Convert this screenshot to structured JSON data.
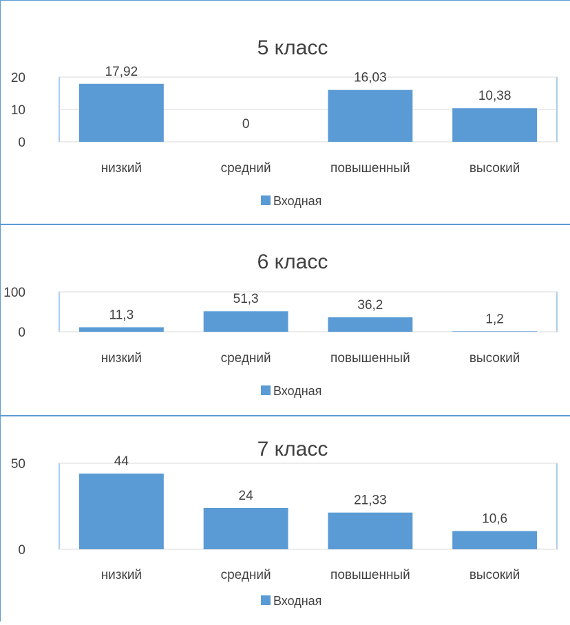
{
  "chart_data": [
    {
      "type": "bar",
      "title": "5 класс",
      "categories": [
        "низкий",
        "средний",
        "повышенный",
        "высокий"
      ],
      "series": [
        {
          "name": "Входная",
          "values": [
            17.92,
            0,
            16.03,
            10.38
          ]
        }
      ],
      "data_labels": [
        "17,92",
        "0",
        "16,03",
        "10,38"
      ],
      "ylim": [
        0,
        20
      ],
      "yticks": [
        "0",
        "10",
        "20"
      ],
      "ytick_values": [
        0,
        10,
        20
      ],
      "grid": true,
      "legend": "bottom",
      "color": "#5b9bd5"
    },
    {
      "type": "bar",
      "title": "6 класс",
      "categories": [
        "низкий",
        "средний",
        "повышенный",
        "высокий"
      ],
      "series": [
        {
          "name": "Входная",
          "values": [
            11.3,
            51.3,
            36.2,
            1.2
          ]
        }
      ],
      "data_labels": [
        "11,3",
        "51,3",
        "36,2",
        "1,2"
      ],
      "ylim": [
        0,
        100
      ],
      "yticks": [
        "0",
        "100"
      ],
      "ytick_values": [
        0,
        100
      ],
      "grid": true,
      "legend": "bottom",
      "color": "#5b9bd5"
    },
    {
      "type": "bar",
      "title": "7 класс",
      "categories": [
        "низкий",
        "средний",
        "повышенный",
        "высокий"
      ],
      "series": [
        {
          "name": "Входная",
          "values": [
            44,
            24,
            21.33,
            10.6
          ]
        }
      ],
      "data_labels": [
        "44",
        "24",
        "21,33",
        "10,6"
      ],
      "ylim": [
        0,
        50
      ],
      "yticks": [
        "0",
        "50"
      ],
      "ytick_values": [
        0,
        50
      ],
      "grid": true,
      "legend": "bottom",
      "color": "#5b9bd5"
    }
  ]
}
